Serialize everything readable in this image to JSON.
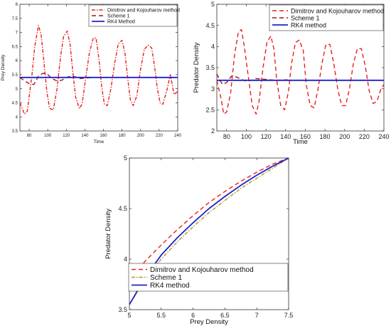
{
  "figure": {
    "description_lines": []
  },
  "styles": {
    "dk_color": "#e8201b",
    "scheme1_color": "#a31510",
    "scheme1_color_c": "#b89124",
    "rk4_color": "#1f22c9"
  },
  "chart_data": [
    {
      "type": "line",
      "xlabel": "Time",
      "ylabel": "Prey Density",
      "xlim": [
        70,
        240
      ],
      "ylim": [
        3.5,
        8
      ],
      "xticks": [
        80,
        100,
        120,
        140,
        160,
        180,
        200,
        220,
        240
      ],
      "yticks": [
        3.5,
        4,
        4.5,
        5,
        5.5,
        6,
        6.5,
        7,
        7.5,
        8
      ],
      "legend_position": "top-right",
      "grid": false,
      "series": [
        {
          "name": "Dimitrov and Kojouharov method",
          "style": "dashdot",
          "color": "#e8201b",
          "x": [
            70,
            75,
            78,
            83,
            86,
            90,
            93,
            96,
            99,
            102,
            106,
            110,
            114,
            117,
            121,
            124,
            127,
            130,
            134,
            137,
            141,
            145,
            149,
            152,
            155,
            158,
            161,
            164,
            168,
            172,
            176,
            180,
            183,
            186,
            189,
            192,
            196,
            200,
            204,
            208,
            212,
            215,
            218,
            221,
            224,
            228,
            232,
            236,
            240
          ],
          "values": [
            4.5,
            4.1,
            4.2,
            5.5,
            6.5,
            7.25,
            6.9,
            5.9,
            4.9,
            4.3,
            4.25,
            5.0,
            6.2,
            6.85,
            7.05,
            6.6,
            5.6,
            4.7,
            4.3,
            4.45,
            5.4,
            6.3,
            6.8,
            6.8,
            6.1,
            5.1,
            4.45,
            4.4,
            5.0,
            5.9,
            6.6,
            6.72,
            6.3,
            5.4,
            4.6,
            4.4,
            4.75,
            5.7,
            6.4,
            6.55,
            6.45,
            5.8,
            5.0,
            4.5,
            4.45,
            4.9,
            5.5,
            4.8,
            4.9
          ]
        },
        {
          "name": "Scheme 1",
          "style": "dashed",
          "color": "#a31510",
          "x": [
            70,
            75,
            80,
            85,
            90,
            95,
            100,
            105,
            110,
            115,
            120,
            125,
            130,
            135,
            140,
            150,
            160,
            240
          ],
          "values": [
            5.4,
            5.28,
            5.18,
            5.15,
            5.45,
            5.55,
            5.5,
            5.35,
            5.28,
            5.3,
            5.4,
            5.45,
            5.42,
            5.36,
            5.38,
            5.4,
            5.4,
            5.4
          ]
        },
        {
          "name": "RK4 Method",
          "style": "solid",
          "color": "#1f22c9",
          "x": [
            70,
            240
          ],
          "values": [
            5.4,
            5.4
          ]
        }
      ]
    },
    {
      "type": "line",
      "xlabel": "Time",
      "ylabel": "Predator Density",
      "xlim": [
        70,
        240
      ],
      "ylim": [
        2,
        5
      ],
      "xticks": [
        80,
        100,
        120,
        140,
        160,
        180,
        200,
        220,
        240
      ],
      "yticks": [
        2,
        2.5,
        3,
        3.5,
        4,
        4.5,
        5
      ],
      "legend_position": "top-right",
      "grid": false,
      "series": [
        {
          "name": "Dimitrov and Kojouharov method",
          "style": "dashed",
          "color": "#e8201b",
          "x": [
            70,
            74,
            77,
            80,
            84,
            88,
            92,
            95,
            98,
            102,
            106,
            110,
            113,
            117,
            121,
            125,
            128,
            131,
            135,
            139,
            143,
            146,
            150,
            154,
            158,
            161,
            165,
            169,
            173,
            177,
            181,
            185,
            189,
            193,
            197,
            201,
            205,
            209,
            213,
            217,
            221,
            225,
            229,
            233,
            237,
            240
          ],
          "values": [
            3.2,
            2.8,
            2.4,
            2.45,
            2.9,
            3.8,
            4.35,
            4.4,
            4.0,
            3.3,
            2.6,
            2.4,
            2.7,
            3.5,
            4.1,
            4.25,
            3.95,
            3.2,
            2.6,
            2.5,
            2.95,
            3.6,
            4.1,
            4.15,
            3.9,
            3.1,
            2.6,
            2.55,
            3.0,
            3.6,
            4.05,
            4.05,
            3.6,
            3.0,
            2.6,
            2.6,
            3.0,
            3.6,
            3.95,
            3.95,
            3.55,
            2.95,
            2.65,
            2.7,
            3.0,
            3.1
          ]
        },
        {
          "name": "Scheme 1",
          "style": "dashed",
          "color": "#a31510",
          "x": [
            70,
            73,
            76,
            80,
            85,
            90,
            95,
            100,
            105,
            110,
            120,
            130,
            140,
            150,
            240
          ],
          "values": [
            3.35,
            3.2,
            3.1,
            3.15,
            3.3,
            3.28,
            3.22,
            3.18,
            3.2,
            3.24,
            3.22,
            3.2,
            3.21,
            3.2,
            3.2
          ]
        },
        {
          "name": "RK4 method",
          "style": "solid",
          "color": "#1f22c9",
          "x": [
            70,
            240
          ],
          "values": [
            3.2,
            3.2
          ]
        }
      ]
    },
    {
      "type": "line",
      "xlabel": "Prey Density",
      "ylabel": "Predator Density",
      "xlim": [
        5,
        7.5
      ],
      "ylim": [
        3.5,
        5
      ],
      "xticks": [
        5,
        5.5,
        6,
        6.5,
        7,
        7.5
      ],
      "yticks": [
        3.5,
        4,
        4.5,
        5
      ],
      "legend_position": "bottom-right",
      "grid": false,
      "series": [
        {
          "name": "Dimitrov and Kojouharov method",
          "style": "dashed",
          "color": "#e8201b",
          "x": [
            5,
            5.25,
            5.5,
            5.75,
            6,
            6.25,
            6.5,
            6.75,
            7,
            7.25,
            7.5
          ],
          "values": [
            3.8,
            3.98,
            4.14,
            4.29,
            4.43,
            4.56,
            4.67,
            4.77,
            4.86,
            4.94,
            5.0
          ]
        },
        {
          "name": "Scheme 1",
          "style": "dashdot",
          "color": "#b89124",
          "x": [
            5,
            5.25,
            5.5,
            5.75,
            6,
            6.25,
            6.5,
            6.75,
            7,
            7.25,
            7.5
          ],
          "values": [
            3.55,
            3.8,
            4.0,
            4.17,
            4.32,
            4.46,
            4.58,
            4.7,
            4.8,
            4.9,
            5.0
          ]
        },
        {
          "name": "RK4 method",
          "style": "solid",
          "color": "#1f22c9",
          "x": [
            5,
            5.25,
            5.5,
            5.75,
            6,
            6.25,
            6.5,
            6.75,
            7,
            7.25,
            7.5
          ],
          "values": [
            3.55,
            3.82,
            4.04,
            4.21,
            4.36,
            4.5,
            4.62,
            4.73,
            4.83,
            4.92,
            5.0
          ]
        }
      ]
    }
  ]
}
